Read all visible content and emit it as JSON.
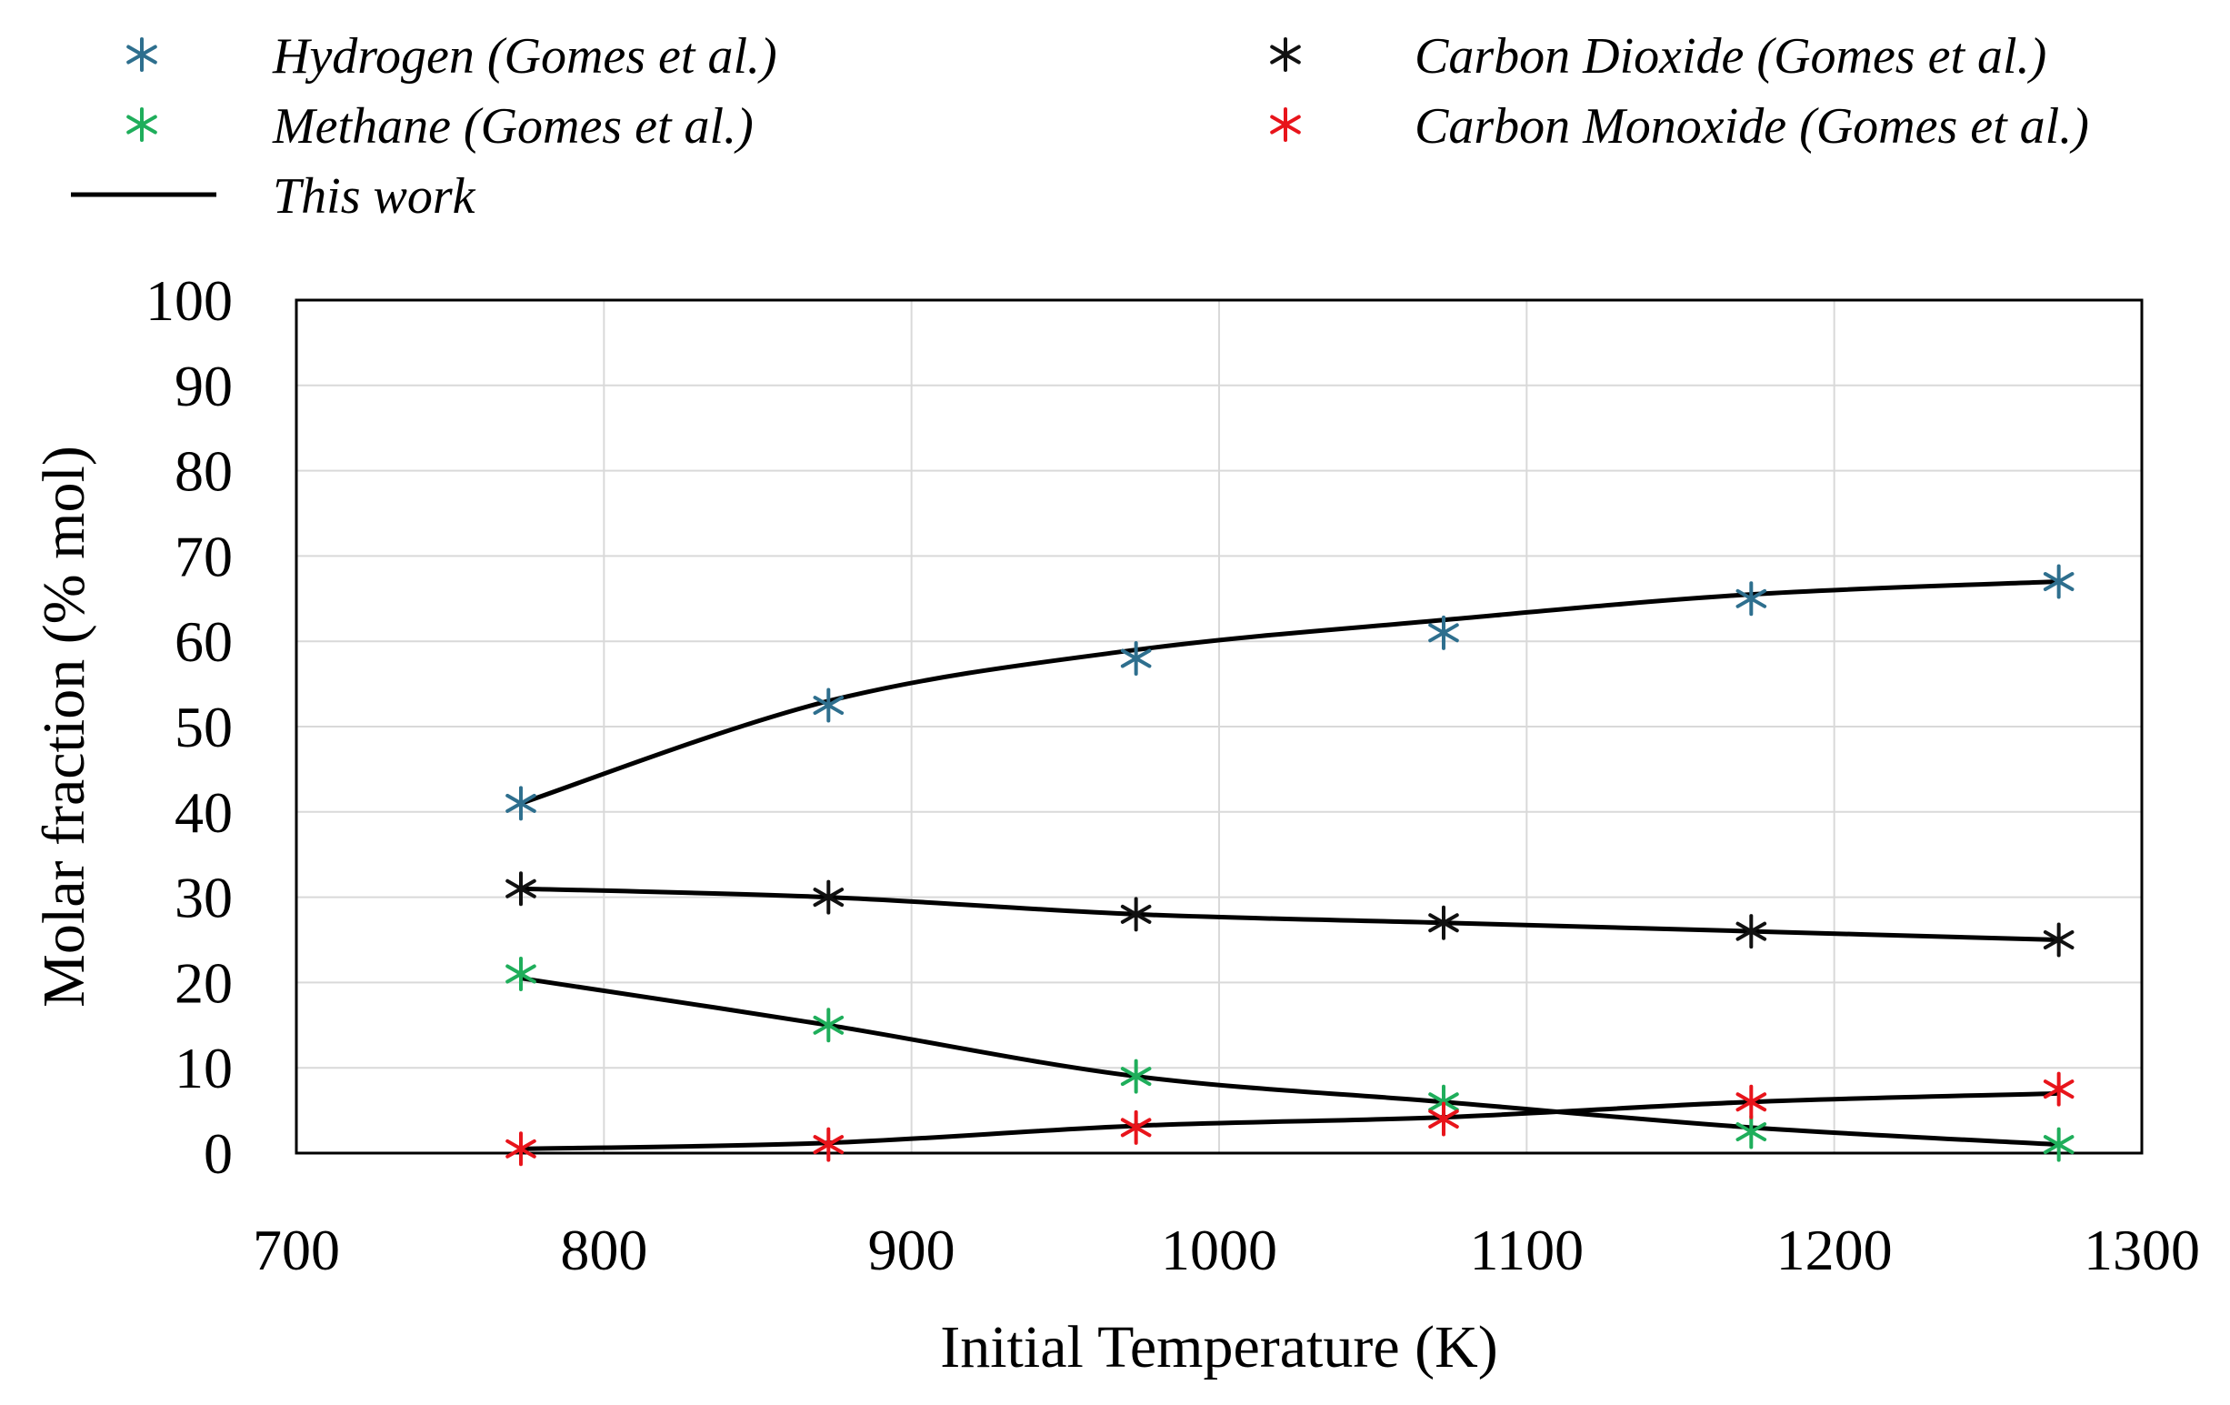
{
  "chart_data": {
    "type": "line",
    "title": "",
    "xlabel": "Initial Temperature (K)",
    "ylabel": "Molar fraction (% mol)",
    "xlim": [
      700,
      1300
    ],
    "ylim": [
      0,
      100
    ],
    "xticks": [
      700,
      800,
      900,
      1000,
      1100,
      1200,
      1300
    ],
    "yticks": [
      0,
      10,
      20,
      30,
      40,
      50,
      60,
      70,
      80,
      90,
      100
    ],
    "grid": true,
    "legend_position": "top",
    "x": [
      773,
      873,
      973,
      1073,
      1173,
      1273
    ],
    "series": [
      {
        "name": "Hydrogen (Gomes et al.)",
        "kind": "marker",
        "color": "#2e6f8e",
        "values": [
          41,
          52.5,
          58,
          61,
          65,
          67
        ]
      },
      {
        "name": "Carbon Dioxide (Gomes et al.)",
        "kind": "marker",
        "color": "#111111",
        "values": [
          31,
          30,
          28,
          27,
          26,
          25
        ]
      },
      {
        "name": "Methane (Gomes et al.)",
        "kind": "marker",
        "color": "#1fae5b",
        "values": [
          21,
          15,
          9,
          6,
          2.5,
          1
        ]
      },
      {
        "name": "Carbon Monoxide (Gomes et al.)",
        "kind": "marker",
        "color": "#e8141b",
        "values": [
          0.5,
          1,
          3,
          4,
          6,
          7.5
        ]
      },
      {
        "name": "This work",
        "kind": "line",
        "color": "#000000",
        "curves": [
          {
            "species": "Hydrogen",
            "values": [
              41,
              53,
              59,
              62.5,
              65.5,
              67
            ]
          },
          {
            "species": "Carbon Dioxide",
            "values": [
              31,
              30,
              28,
              27,
              26,
              25
            ]
          },
          {
            "species": "Methane",
            "values": [
              20.5,
              15,
              9,
              6,
              3,
              1
            ]
          },
          {
            "species": "Carbon Monoxide",
            "values": [
              0.5,
              1.2,
              3.2,
              4.2,
              6,
              7
            ]
          }
        ]
      }
    ]
  }
}
